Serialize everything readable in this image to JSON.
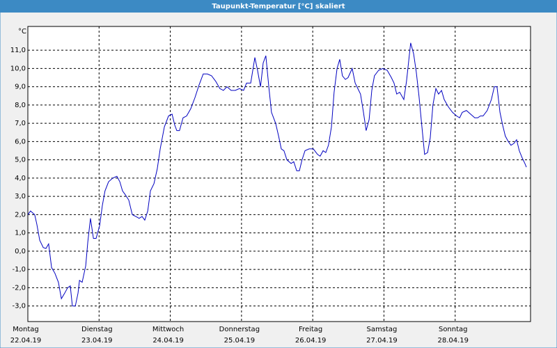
{
  "chart_data": {
    "type": "line",
    "title": "Taupunkt-Temperatur [°C] skaliert",
    "y_unit": "°C",
    "xlim": [
      0,
      169.4
    ],
    "ylim": [
      -3.85,
      12.3
    ],
    "grid": true,
    "xticks": [
      {
        "value": 0,
        "label": "Montag"
      },
      {
        "value": 24,
        "label": "Dienstag"
      },
      {
        "value": 48,
        "label": "Mittwoch"
      },
      {
        "value": 72,
        "label": "Donnerstag"
      },
      {
        "value": 96,
        "label": "Freitag"
      },
      {
        "value": 120,
        "label": "Samstag"
      },
      {
        "value": 144,
        "label": "Sonntag"
      }
    ],
    "xtick_dates": [
      "22.04.19",
      "23.04.19",
      "24.04.19",
      "25.04.19",
      "26.04.19",
      "27.04.19",
      "28.04.19"
    ],
    "yticks": [
      {
        "value": -3,
        "label": "-3,0"
      },
      {
        "value": -2,
        "label": "-2,0"
      },
      {
        "value": -1,
        "label": "-1,0"
      },
      {
        "value": 0,
        "label": "0,0"
      },
      {
        "value": 1,
        "label": "1,0"
      },
      {
        "value": 2,
        "label": "2,0"
      },
      {
        "value": 3,
        "label": "3,0"
      },
      {
        "value": 4,
        "label": "4,0"
      },
      {
        "value": 5,
        "label": "5,0"
      },
      {
        "value": 6,
        "label": "6,0"
      },
      {
        "value": 7,
        "label": "7,0"
      },
      {
        "value": 8,
        "label": "8,0"
      },
      {
        "value": 9,
        "label": "9,0"
      },
      {
        "value": 10,
        "label": "10,0"
      },
      {
        "value": 11,
        "label": "11,0"
      }
    ],
    "series": [
      {
        "color": "#0000c0",
        "x": [
          0,
          0.9,
          2.3,
          3.0,
          4.0,
          5.2,
          6.1,
          7.0,
          8.0,
          9.1,
          10.3,
          11.3,
          12.4,
          13.4,
          14.3,
          15.0,
          16.0,
          16.9,
          17.4,
          18.3,
          19.5,
          20.2,
          21.1,
          22.1,
          23.0,
          24.2,
          25.1,
          26.0,
          27.2,
          28.6,
          30.0,
          31.0,
          31.9,
          32.8,
          34.0,
          35.2,
          36.4,
          37.5,
          38.5,
          39.4,
          40.4,
          41.3,
          42.5,
          43.6,
          44.6,
          46.0,
          47.4,
          48.6,
          49.5,
          50.2,
          51.1,
          52.3,
          53.5,
          54.9,
          56.3,
          57.7,
          59.1,
          60.5,
          61.9,
          63.3,
          64.7,
          65.9,
          67.1,
          68.5,
          69.9,
          71.3,
          72.7,
          73.7,
          75.1,
          76.5,
          77.4,
          78.4,
          79.3,
          80.2,
          81.2,
          82.1,
          83.5,
          84.5,
          85.4,
          86.3,
          87.3,
          88.7,
          89.6,
          90.6,
          91.5,
          92.4,
          93.4,
          94.8,
          96.2,
          97.6,
          98.5,
          99.5,
          100.4,
          101.3,
          102.3,
          103.2,
          104.2,
          105.1,
          106.0,
          107.0,
          107.9,
          109.3,
          110.3,
          111.2,
          112.1,
          113.1,
          114.0,
          115.0,
          115.9,
          116.8,
          118.2,
          119.6,
          121.1,
          122.5,
          123.4,
          124.3,
          125.3,
          126.7,
          127.6,
          129.0,
          130.0,
          130.9,
          131.8,
          132.8,
          133.7,
          134.7,
          135.6,
          136.5,
          137.5,
          138.4,
          139.4,
          140.3,
          141.7,
          143.1,
          144.5,
          145.5,
          146.4,
          147.8,
          149.2,
          150.6,
          151.6,
          152.5,
          153.4,
          154.8,
          156.2,
          157.2,
          158.1,
          159.1,
          160.0,
          160.9,
          161.9,
          162.8,
          163.8,
          164.7,
          165.6,
          166.6,
          167.5,
          168.0
        ],
        "values": [
          2.0,
          2.2,
          2.0,
          1.5,
          0.6,
          0.2,
          0.15,
          0.4,
          -0.9,
          -1.2,
          -1.7,
          -2.6,
          -2.3,
          -2.0,
          -1.9,
          -3.0,
          -3.0,
          -2.3,
          -1.6,
          -1.7,
          -0.8,
          0.5,
          1.8,
          0.7,
          0.7,
          1.4,
          2.5,
          3.3,
          3.8,
          4.0,
          4.1,
          3.8,
          3.3,
          3.1,
          2.8,
          2.0,
          1.9,
          1.8,
          1.9,
          1.7,
          2.2,
          3.3,
          3.7,
          4.5,
          5.6,
          6.8,
          7.4,
          7.5,
          6.9,
          6.6,
          6.6,
          7.3,
          7.4,
          7.8,
          8.4,
          9.1,
          9.7,
          9.7,
          9.6,
          9.3,
          8.9,
          8.8,
          9.0,
          8.8,
          8.8,
          8.9,
          8.8,
          9.2,
          9.2,
          10.6,
          9.9,
          9.0,
          10.3,
          10.7,
          9.0,
          7.6,
          7.0,
          6.3,
          5.6,
          5.5,
          5.0,
          4.8,
          4.9,
          4.4,
          4.4,
          5.0,
          5.5,
          5.6,
          5.6,
          5.3,
          5.2,
          5.5,
          5.4,
          5.8,
          6.8,
          8.7,
          10.0,
          10.5,
          9.6,
          9.4,
          9.5,
          10.0,
          9.2,
          8.9,
          8.6,
          7.6,
          6.6,
          7.2,
          8.8,
          9.6,
          9.9,
          10.0,
          9.9,
          9.5,
          9.2,
          8.6,
          8.7,
          8.3,
          9.3,
          11.4,
          10.8,
          9.8,
          8.5,
          6.8,
          5.3,
          5.4,
          6.2,
          8.0,
          8.9,
          8.6,
          8.8,
          8.3,
          7.9,
          7.6,
          7.4,
          7.3,
          7.6,
          7.7,
          7.5,
          7.3,
          7.3,
          7.4,
          7.4,
          7.7,
          8.3,
          9.0,
          9.0,
          7.6,
          6.9,
          6.3,
          6.0,
          5.8,
          5.9,
          6.1,
          5.5,
          5.1,
          4.8,
          4.6
        ]
      }
    ]
  }
}
